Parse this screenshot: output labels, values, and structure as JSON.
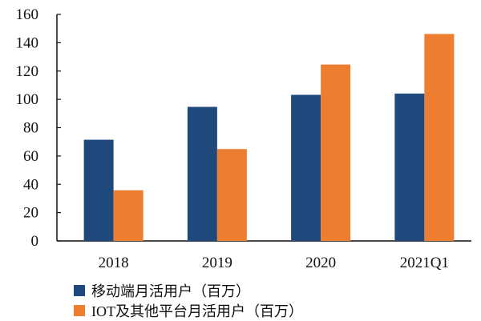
{
  "chart_data": {
    "type": "bar",
    "categories": [
      "2018",
      "2019",
      "2020",
      "2021Q1"
    ],
    "series": [
      {
        "name": "移动端月活用户（百万）",
        "values": [
          71.5,
          94.7,
          103.2,
          104.1
        ],
        "color": "#1F497D"
      },
      {
        "name": "IOT及其他平台月活用户（百万）",
        "values": [
          35.8,
          64.9,
          124.6,
          146.2
        ],
        "color": "#ED7D31"
      }
    ],
    "ylim": [
      0,
      160
    ],
    "yticks": [
      0,
      20,
      40,
      60,
      80,
      100,
      120,
      140,
      160
    ],
    "grid": false,
    "legend_position": "bottom-left",
    "title": "",
    "xlabel": "",
    "ylabel": ""
  }
}
